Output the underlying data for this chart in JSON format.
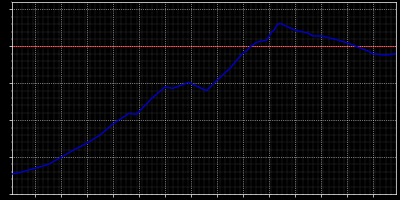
{
  "years": [
    1871,
    1875,
    1880,
    1885,
    1890,
    1895,
    1900,
    1905,
    1910,
    1916,
    1919,
    1925,
    1930,
    1933,
    1939,
    1946,
    1950,
    1955,
    1960,
    1961,
    1962,
    1963,
    1964,
    1965,
    1966,
    1967,
    1968,
    1969,
    1970,
    1971,
    1972,
    1973,
    1974,
    1975,
    1980,
    1985,
    1987,
    1990,
    1995,
    2000,
    2005,
    2008,
    2010,
    2015,
    2019
  ],
  "population": [
    27000,
    30000,
    35000,
    40000,
    50000,
    60000,
    69000,
    80000,
    95000,
    109000,
    108000,
    130000,
    145000,
    143000,
    151000,
    140000,
    154000,
    170000,
    191000,
    193000,
    196000,
    200000,
    202000,
    205000,
    206000,
    207000,
    207500,
    208000,
    213000,
    219000,
    222000,
    228000,
    231000,
    230000,
    222000,
    218000,
    214000,
    214000,
    210000,
    205000,
    198000,
    194000,
    190000,
    188000,
    190000
  ],
  "line_color": "#0000cc",
  "bg_color": "#000000",
  "grid_color": "#ffffff",
  "red_line_value": 200000,
  "red_line_color": "#cc0000",
  "xlim": [
    1871,
    2019
  ],
  "ylim": [
    0,
    260000
  ],
  "figsize": [
    4.0,
    2.0
  ],
  "dpi": 100,
  "x_major_ticks": [
    1880,
    1890,
    1900,
    1910,
    1920,
    1930,
    1940,
    1950,
    1960,
    1970,
    1980,
    1990,
    2000,
    2010
  ],
  "x_minor_ticks_step": 2,
  "y_major_ticks": [
    0,
    50000,
    100000,
    150000,
    200000,
    250000
  ],
  "y_minor_ticks_step": 10000
}
